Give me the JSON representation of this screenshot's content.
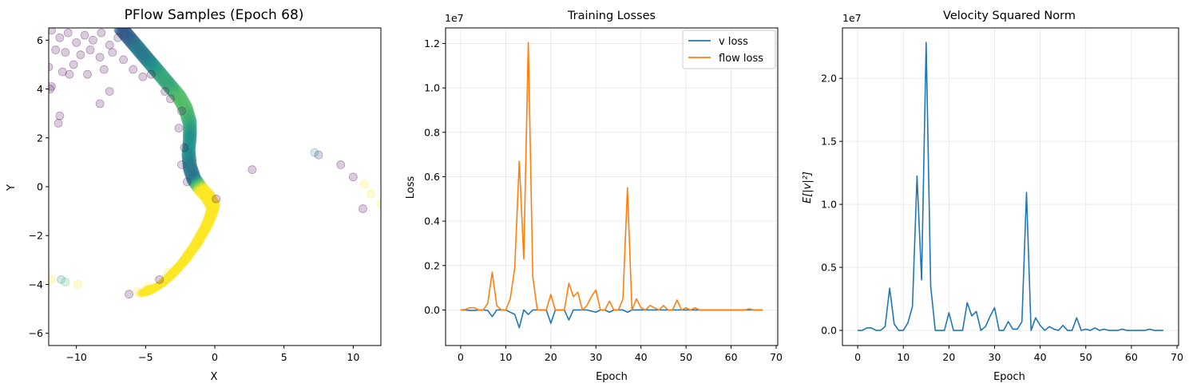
{
  "chart_data": [
    {
      "type": "scatter",
      "title": "PFlow Samples (Epoch 68)",
      "xlabel": "X",
      "ylabel": "Y",
      "xlim": [
        -12,
        12
      ],
      "ylim": [
        -6.5,
        6.5
      ],
      "xticks": [
        -10,
        -5,
        0,
        5,
        10
      ],
      "yticks": [
        -6,
        -4,
        -2,
        0,
        2,
        4,
        6
      ],
      "grid": false,
      "colormap": [
        "#440154",
        "#3b528b",
        "#21918c",
        "#5ec962",
        "#fde725"
      ],
      "point_alpha": 0.2,
      "points": [
        {
          "x": -11.8,
          "y": 6.4,
          "c": 0.0
        },
        {
          "x": -11.2,
          "y": 6.1,
          "c": 0.0
        },
        {
          "x": -10.6,
          "y": 6.3,
          "c": 0.0
        },
        {
          "x": -10.0,
          "y": 5.9,
          "c": 0.0
        },
        {
          "x": -9.4,
          "y": 6.2,
          "c": 0.0
        },
        {
          "x": -8.8,
          "y": 6.0,
          "c": 0.0
        },
        {
          "x": -8.2,
          "y": 6.3,
          "c": 0.0
        },
        {
          "x": -7.6,
          "y": 5.8,
          "c": 0.0
        },
        {
          "x": -7.0,
          "y": 6.1,
          "c": 0.1
        },
        {
          "x": -11.5,
          "y": 5.6,
          "c": 0.0
        },
        {
          "x": -10.8,
          "y": 5.5,
          "c": 0.0
        },
        {
          "x": -9.7,
          "y": 5.4,
          "c": 0.0
        },
        {
          "x": -9.0,
          "y": 5.6,
          "c": 0.0
        },
        {
          "x": -8.3,
          "y": 5.3,
          "c": 0.0
        },
        {
          "x": -7.4,
          "y": 5.5,
          "c": 0.0
        },
        {
          "x": -6.6,
          "y": 5.2,
          "c": 0.0
        },
        {
          "x": -10.2,
          "y": 5.0,
          "c": 0.0
        },
        {
          "x": -11.0,
          "y": 4.7,
          "c": 0.0
        },
        {
          "x": -10.5,
          "y": 4.6,
          "c": 0.0
        },
        {
          "x": -9.2,
          "y": 4.6,
          "c": 0.0
        },
        {
          "x": -8.0,
          "y": 4.8,
          "c": 0.0
        },
        {
          "x": -5.9,
          "y": 4.8,
          "c": 0.0
        },
        {
          "x": -5.2,
          "y": 4.5,
          "c": 0.0
        },
        {
          "x": -4.6,
          "y": 4.6,
          "c": 0.0
        },
        {
          "x": -12.0,
          "y": 4.9,
          "c": 0.0
        },
        {
          "x": -11.8,
          "y": 4.1,
          "c": 0.0
        },
        {
          "x": -11.9,
          "y": 4.0,
          "c": 0.0
        },
        {
          "x": -7.6,
          "y": 3.9,
          "c": 0.0
        },
        {
          "x": -8.3,
          "y": 3.4,
          "c": 0.0
        },
        {
          "x": -11.2,
          "y": 2.9,
          "c": 0.0
        },
        {
          "x": -11.3,
          "y": 2.6,
          "c": 0.0
        },
        {
          "x": -3.6,
          "y": 3.9,
          "c": 0.0
        },
        {
          "x": -3.2,
          "y": 3.6,
          "c": 0.0
        },
        {
          "x": -2.4,
          "y": 3.1,
          "c": 0.0
        },
        {
          "x": -2.6,
          "y": 2.4,
          "c": 0.0
        },
        {
          "x": -2.2,
          "y": 1.6,
          "c": 0.0
        },
        {
          "x": -2.4,
          "y": 0.9,
          "c": 0.1
        },
        {
          "x": -2.0,
          "y": 0.2,
          "c": 0.1
        },
        {
          "x": 0.1,
          "y": -0.5,
          "c": 0.0
        },
        {
          "x": 2.7,
          "y": 0.7,
          "c": 0.0
        },
        {
          "x": 7.2,
          "y": 1.4,
          "c": 0.5
        },
        {
          "x": 7.5,
          "y": 1.3,
          "c": 0.1
        },
        {
          "x": 9.1,
          "y": 0.9,
          "c": 0.0
        },
        {
          "x": 10.0,
          "y": 0.4,
          "c": 0.0
        },
        {
          "x": 10.8,
          "y": 0.1,
          "c": 1.0
        },
        {
          "x": 11.3,
          "y": -0.3,
          "c": 1.0
        },
        {
          "x": 12.0,
          "y": -0.7,
          "c": 1.0
        },
        {
          "x": 10.7,
          "y": -0.9,
          "c": 0.0
        },
        {
          "x": -11.8,
          "y": -3.8,
          "c": 1.0
        },
        {
          "x": -11.1,
          "y": -3.8,
          "c": 0.5
        },
        {
          "x": -10.8,
          "y": -3.9,
          "c": 0.7
        },
        {
          "x": -9.9,
          "y": -4.0,
          "c": 1.0
        },
        {
          "x": -6.2,
          "y": -4.4,
          "c": 0.0
        },
        {
          "x": -5.6,
          "y": -4.3,
          "c": 1.0
        },
        {
          "x": -4.9,
          "y": -4.1,
          "c": 1.0
        },
        {
          "x": -4.0,
          "y": -3.8,
          "c": 0.0
        },
        {
          "x": -3.4,
          "y": -3.5,
          "c": 1.0
        }
      ],
      "curve": [
        [
          -6.8,
          6.5
        ],
        [
          -6.2,
          6.1
        ],
        [
          -5.6,
          5.7
        ],
        [
          -5.0,
          5.3
        ],
        [
          -4.4,
          4.9
        ],
        [
          -3.8,
          4.5
        ],
        [
          -3.2,
          4.1
        ],
        [
          -2.6,
          3.7
        ],
        [
          -2.1,
          3.2
        ],
        [
          -1.8,
          2.6
        ],
        [
          -1.8,
          2.0
        ],
        [
          -1.9,
          1.4
        ],
        [
          -1.8,
          0.8
        ],
        [
          -1.5,
          0.3
        ],
        [
          -1.0,
          -0.1
        ],
        [
          -0.5,
          -0.4
        ],
        [
          -0.1,
          -0.8
        ],
        [
          -0.3,
          -1.2
        ],
        [
          -0.6,
          -1.6
        ],
        [
          -1.0,
          -2.0
        ],
        [
          -1.4,
          -2.4
        ],
        [
          -1.8,
          -2.7
        ],
        [
          -2.3,
          -3.1
        ],
        [
          -2.8,
          -3.4
        ],
        [
          -3.3,
          -3.7
        ],
        [
          -3.9,
          -4.0
        ],
        [
          -4.5,
          -4.2
        ],
        [
          -5.2,
          -4.3
        ]
      ],
      "curve_colors": [
        0.3,
        0.3,
        0.4,
        0.4,
        0.5,
        0.6,
        0.6,
        0.7,
        0.7,
        0.6,
        0.5,
        0.5,
        0.4,
        0.4,
        1.0,
        1.0,
        1.0,
        1.0,
        1.0,
        1.0,
        1.0,
        1.0,
        1.0,
        1.0,
        1.0,
        1.0,
        1.0,
        1.0
      ]
    },
    {
      "type": "line",
      "title": "Training Losses",
      "xlabel": "Epoch",
      "ylabel": "Loss",
      "scale_label": "1e7",
      "xlim": [
        -3.35,
        70.35
      ],
      "ylim": [
        -0.16,
        1.27
      ],
      "xticks": [
        0,
        10,
        20,
        30,
        40,
        50,
        60,
        70
      ],
      "yticks": [
        0.0,
        0.2,
        0.4,
        0.6,
        0.8,
        1.0,
        1.2
      ],
      "ytick_labels": [
        "0.0",
        "0.2",
        "0.4",
        "0.6",
        "0.8",
        "1.0",
        "1.2"
      ],
      "grid": true,
      "legend": "top-right",
      "x": [
        0,
        1,
        2,
        3,
        4,
        5,
        6,
        7,
        8,
        9,
        10,
        11,
        12,
        13,
        14,
        15,
        16,
        17,
        18,
        19,
        20,
        21,
        22,
        23,
        24,
        25,
        26,
        27,
        28,
        29,
        30,
        31,
        32,
        33,
        34,
        35,
        36,
        37,
        38,
        39,
        40,
        41,
        42,
        43,
        44,
        45,
        46,
        47,
        48,
        49,
        50,
        51,
        52,
        53,
        54,
        55,
        56,
        57,
        58,
        59,
        60,
        61,
        62,
        63,
        64,
        65,
        66,
        67
      ],
      "series": [
        {
          "name": "v loss",
          "color": "#1f77b4",
          "values": [
            0,
            0,
            -0.002,
            -0.002,
            0,
            0,
            -0.002,
            -0.03,
            0,
            0,
            0,
            -0.01,
            -0.02,
            -0.08,
            0,
            -0.02,
            0,
            0,
            0,
            0,
            -0.06,
            0,
            0,
            0,
            -0.045,
            0,
            0,
            0,
            0,
            -0.005,
            -0.01,
            0,
            0,
            -0.01,
            0,
            0,
            0,
            -0.01,
            0,
            0,
            0,
            0,
            0,
            0,
            0,
            0,
            0,
            0,
            0,
            0,
            0,
            0,
            0,
            0,
            0,
            0,
            0,
            0,
            0,
            0,
            0,
            0,
            0,
            0,
            0,
            0,
            0,
            0
          ]
        },
        {
          "name": "flow loss",
          "color": "#ff7f0e",
          "values": [
            0,
            0.002,
            0.01,
            0.01,
            0,
            0,
            0.03,
            0.17,
            0.02,
            0,
            0,
            0.05,
            0.19,
            0.67,
            0.23,
            1.205,
            0.15,
            0,
            0,
            0,
            0.07,
            0,
            0,
            0,
            0.12,
            0.06,
            0.08,
            0,
            0.02,
            0.06,
            0.09,
            0,
            0,
            0.04,
            0,
            0,
            0.05,
            0.55,
            0,
            0.05,
            0.01,
            0,
            0.02,
            0.01,
            0,
            0.02,
            0,
            0,
            0.045,
            0,
            0.01,
            0,
            0.01,
            0,
            0,
            0,
            0,
            0,
            0,
            0,
            0,
            0,
            0,
            0,
            0.005,
            0,
            0,
            0
          ]
        }
      ]
    },
    {
      "type": "line",
      "title": "Velocity Squared Norm",
      "xlabel": "Epoch",
      "ylabel": "E[|v|²]",
      "scale_label": "1e7",
      "xlim": [
        -3.35,
        70.35
      ],
      "ylim": [
        -0.12,
        2.4
      ],
      "xticks": [
        0,
        10,
        20,
        30,
        40,
        50,
        60,
        70
      ],
      "yticks": [
        0.0,
        0.5,
        1.0,
        1.5,
        2.0
      ],
      "ytick_labels": [
        "0.0",
        "0.5",
        "1.0",
        "1.5",
        "2.0"
      ],
      "grid": true,
      "x": [
        0,
        1,
        2,
        3,
        4,
        5,
        6,
        7,
        8,
        9,
        10,
        11,
        12,
        13,
        14,
        15,
        16,
        17,
        18,
        19,
        20,
        21,
        22,
        23,
        24,
        25,
        26,
        27,
        28,
        29,
        30,
        31,
        32,
        33,
        34,
        35,
        36,
        37,
        38,
        39,
        40,
        41,
        42,
        43,
        44,
        45,
        46,
        47,
        48,
        49,
        50,
        51,
        52,
        53,
        54,
        55,
        56,
        57,
        58,
        59,
        60,
        61,
        62,
        63,
        64,
        65,
        66,
        67
      ],
      "series": [
        {
          "color": "#1f77b4",
          "values": [
            0,
            0,
            0.02,
            0.02,
            0,
            0,
            0.03,
            0.335,
            0.05,
            0,
            0,
            0.06,
            0.19,
            1.225,
            0.4,
            2.285,
            0.35,
            0,
            0,
            0,
            0.14,
            0,
            0,
            0,
            0.22,
            0.115,
            0.15,
            0,
            0.03,
            0.11,
            0.18,
            0,
            0,
            0.07,
            0.01,
            0.01,
            0.07,
            1.095,
            0,
            0.1,
            0.04,
            0,
            0.03,
            0.01,
            0,
            0.04,
            0,
            0,
            0.1,
            0,
            0.01,
            0,
            0.02,
            0,
            0.01,
            0,
            0,
            0,
            0.01,
            0,
            0,
            0,
            0,
            0,
            0.01,
            0,
            0,
            0
          ]
        }
      ]
    }
  ]
}
